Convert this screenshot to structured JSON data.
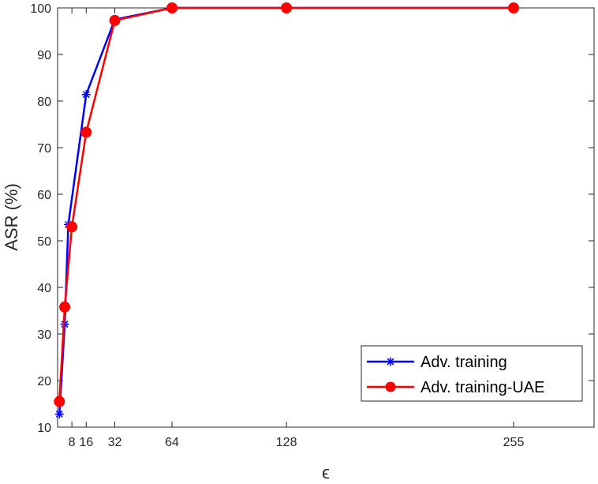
{
  "chart_data": {
    "type": "line",
    "xlabel": "ϵ",
    "ylabel": "ASR (%)",
    "xlim": [
      0,
      300
    ],
    "ylim": [
      10,
      100
    ],
    "xticks": [
      8,
      16,
      32,
      64,
      128,
      255
    ],
    "xtick_labels": [
      "8",
      "16",
      "32",
      "64",
      "128",
      "255"
    ],
    "yticks": [
      10,
      20,
      30,
      40,
      50,
      60,
      70,
      80,
      90,
      100
    ],
    "ytick_labels": [
      "10",
      "20",
      "30",
      "40",
      "50",
      "60",
      "70",
      "80",
      "90",
      "100"
    ],
    "grid": false,
    "legend_position": "bottom-right",
    "series": [
      {
        "name": "Adv. training",
        "color": "#0000ff",
        "marker": "asterisk",
        "x": [
          1,
          4,
          6,
          16,
          32,
          64,
          128,
          255
        ],
        "y": [
          12.8,
          32.1,
          53.5,
          81.4,
          97.5,
          100,
          100,
          100
        ]
      },
      {
        "name": "Adv. training-UAE",
        "color": "#ff0000",
        "marker": "circle",
        "x": [
          1,
          4,
          8,
          16,
          32,
          64,
          128,
          255
        ],
        "y": [
          15.5,
          35.8,
          53.0,
          73.3,
          97.3,
          100,
          100,
          100
        ]
      }
    ]
  }
}
